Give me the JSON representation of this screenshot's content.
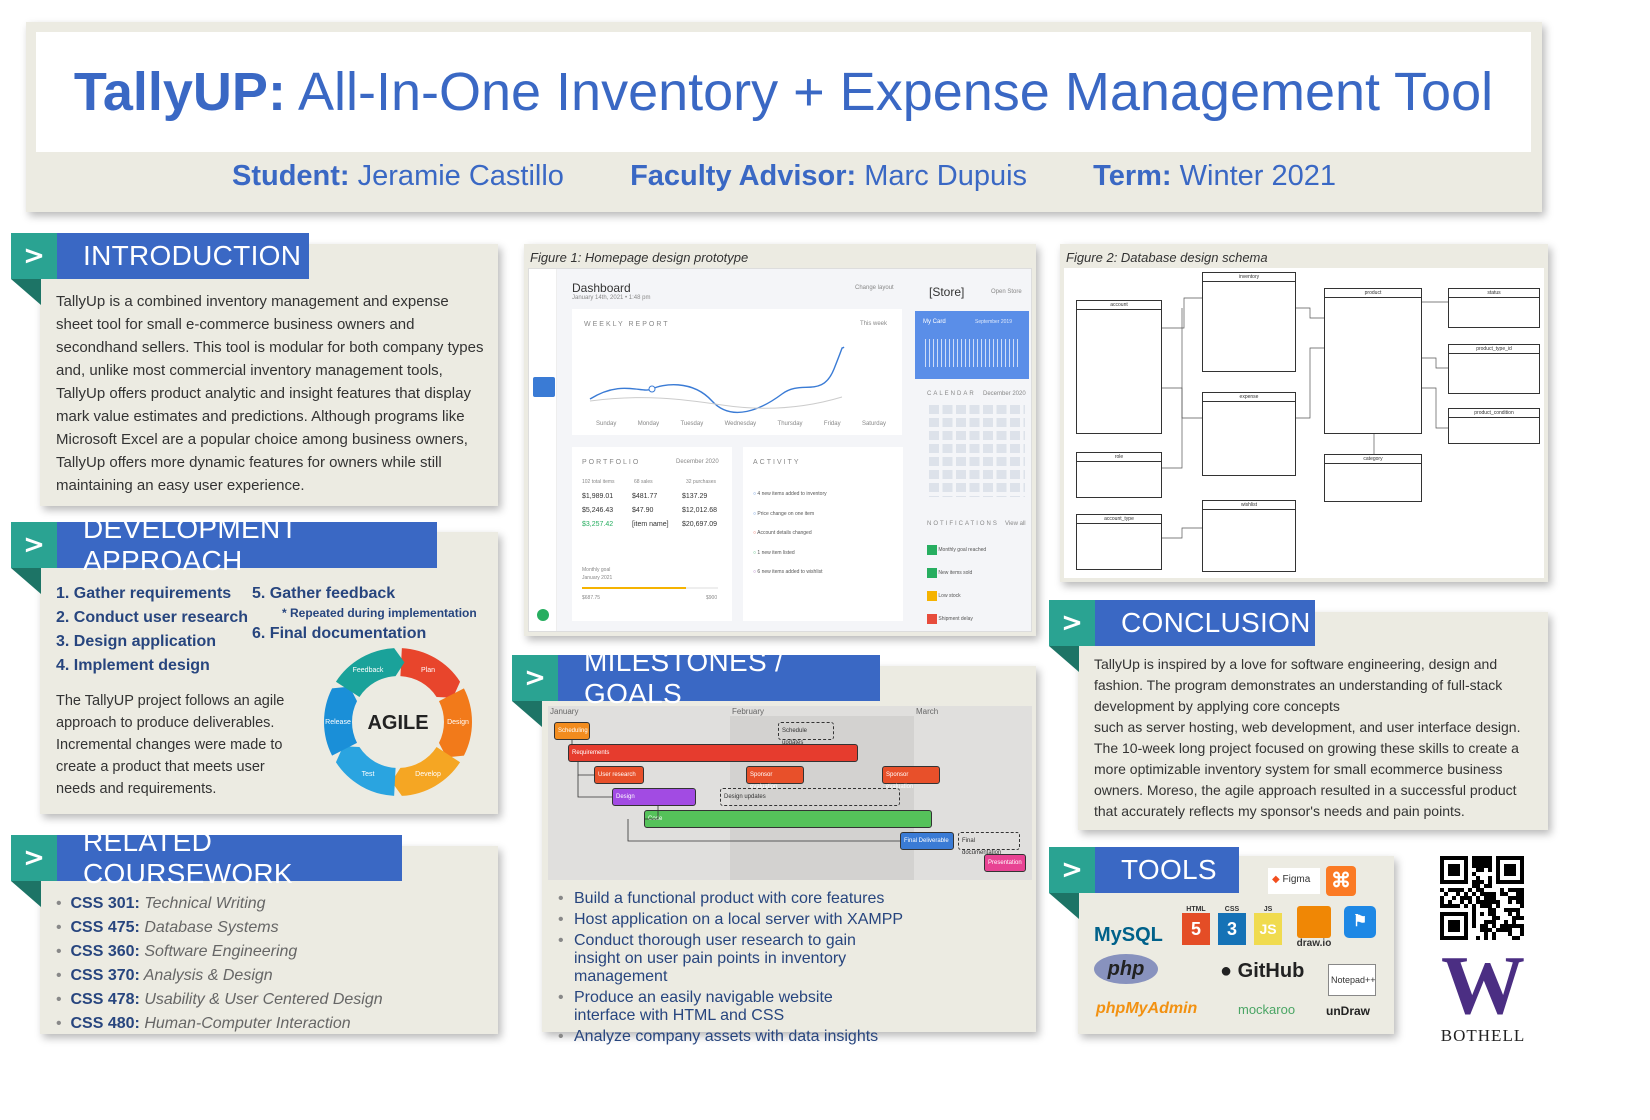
{
  "header": {
    "title_bold": "TallyUP:",
    "title_rest": " All-In-One Inventory + Expense Management Tool",
    "student_label": "Student:",
    "student_name": " Jeramie Castillo",
    "advisor_label": "Faculty Advisor:",
    "advisor_name": " Marc Dupuis",
    "term_label": "Term:",
    "term_value": " Winter 2021"
  },
  "intro": {
    "heading": "INTRODUCTION",
    "body": "TallyUp is a combined inventory management and expense sheet tool for small e-commerce business owners and secondhand sellers. This tool is modular for both company types and, unlike most commercial inventory management tools, TallyUp offers product analytic and insight features that display mark value estimates and predictions. Although programs like Microsoft Excel are a popular choice among business owners, TallyUp offers more dynamic features for owners while still maintaining an easy user experience."
  },
  "dev": {
    "heading": "DEVELOPMENT APPROACH",
    "steps_left": [
      "1.  Gather requirements",
      "2.  Conduct user research",
      "3.  Design application",
      "4.  Implement design"
    ],
    "steps_right": [
      "5.  Gather feedback",
      "6.  Final documentation"
    ],
    "repeat_note": "* Repeated during implementation",
    "body": "The TallyUP project follows an agile approach to produce deliverables. Incremental changes were made to create a product that meets user needs and requirements.",
    "agile_label": "AGILE",
    "cycle": [
      "Plan",
      "Design",
      "Develop",
      "Test",
      "Release",
      "Feedback"
    ],
    "cycle_colors": [
      "#e8452c",
      "#f27a1a",
      "#f5a623",
      "#2aa4e0",
      "#1a8fd8",
      "#1aa29a"
    ]
  },
  "coursework": {
    "heading": "RELATED COURSEWORK",
    "items": [
      {
        "code": "CSS 301:",
        "name": " Technical Writing"
      },
      {
        "code": "CSS 475:",
        "name": " Database Systems"
      },
      {
        "code": "CSS 360:",
        "name": " Software Engineering"
      },
      {
        "code": "CSS 370:",
        "name": " Analysis & Design"
      },
      {
        "code": "CSS 478:",
        "name": " Usability & User Centered Design"
      },
      {
        "code": "CSS 480:",
        "name": " Human-Computer Interaction"
      }
    ]
  },
  "fig1": {
    "caption": "Figure 1: Homepage design prototype",
    "dashboard_title": "Dashboard",
    "dashboard_date": "January 14th, 2021 • 1:48 pm",
    "change_layout": "Change layout",
    "weekly_report": "WEEKLY REPORT",
    "this_week": "This week",
    "days": [
      "Sunday",
      "Monday",
      "Tuesday",
      "Wednesday",
      "Thursday",
      "Friday",
      "Saturday"
    ],
    "store": "[Store]",
    "open_store": "Open Store",
    "my_card": "My Card",
    "card_period": "September 2019",
    "calendar": "CALENDAR",
    "calendar_month": "December 2020",
    "portfolio": "PORTFOLIO",
    "portfolio_period": "December 2020",
    "portfolio_counts": [
      "102 total items",
      "68 sales",
      "32 purchases"
    ],
    "portfolio_values": [
      "$1,989.01",
      "$481.77",
      "$137.29",
      "$5,246.43",
      "$47.90",
      "$12,012.68",
      "$3,257.42",
      "[item name]",
      "$20,697.09"
    ],
    "monthly_goal": "Monthly goal",
    "goal_period": "January 2021",
    "goal_current": "$687.75",
    "goal_target": "$900",
    "activity": "ACTIVITY",
    "activity_items": [
      "4 new items added to inventory",
      "Price change on one item",
      "Account details changed",
      "1 new item listed",
      "6 new items added to wishlist"
    ],
    "notifications": "NOTIFICATIONS",
    "view_all": "View all",
    "notif_items": [
      "Monthly goal reached",
      "New items sold",
      "Low stock",
      "Shipment delay"
    ]
  },
  "fig2": {
    "caption": "Figure 2: Database design schema",
    "tables": [
      "account",
      "inventory",
      "product",
      "status",
      "product_type_id",
      "product_condition",
      "expense",
      "role",
      "category",
      "account_type",
      "wishlist"
    ]
  },
  "milestones": {
    "heading": "MILESTONES / GOALS",
    "months": [
      "January",
      "February",
      "March"
    ],
    "tasks": [
      "Scheduling",
      "Schedule updates",
      "Requirements",
      "User research",
      "Sponsor evaluation",
      "Sponsor evaluation",
      "Design",
      "Design updates",
      "Code",
      "Final Deliverable",
      "Final documentation",
      "Presentation"
    ],
    "goals": [
      "Build a functional product with core features",
      "Host application on a local server with XAMPP",
      "Conduct thorough user research to gain insight on user pain points in inventory management",
      "Produce an easily navigable website interface with HTML and CSS",
      "Analyze company assets with data insights"
    ]
  },
  "conclusion": {
    "heading": "CONCLUSION",
    "body1": "TallyUp is inspired by a love for software engineering, design and fashion. The program demonstrates an understanding of full-stack development by applying core concepts",
    "body2": "such as server hosting, web development, and user interface design. The 10-week long project focused on growing these skills to create a more optimizable inventory system for small ecommerce business owners. Moreso, the agile approach resulted in a successful product that accurately reflects my sponsor's needs and pain points."
  },
  "tools": {
    "heading": "TOOLS",
    "logos": [
      "Figma",
      "MySQL",
      "HTML",
      "CSS",
      "JS",
      "draw.io",
      "php",
      "GitHub",
      "Notepad++",
      "phpMyAdmin",
      "mockaroo",
      "unDraw"
    ]
  },
  "uw": {
    "letter": "W",
    "campus": "BOTHELL"
  },
  "colors": {
    "accent_blue": "#3a68c4",
    "teal": "#2aa392",
    "panel": "#ecebe2",
    "title_blue": "#27457e"
  }
}
